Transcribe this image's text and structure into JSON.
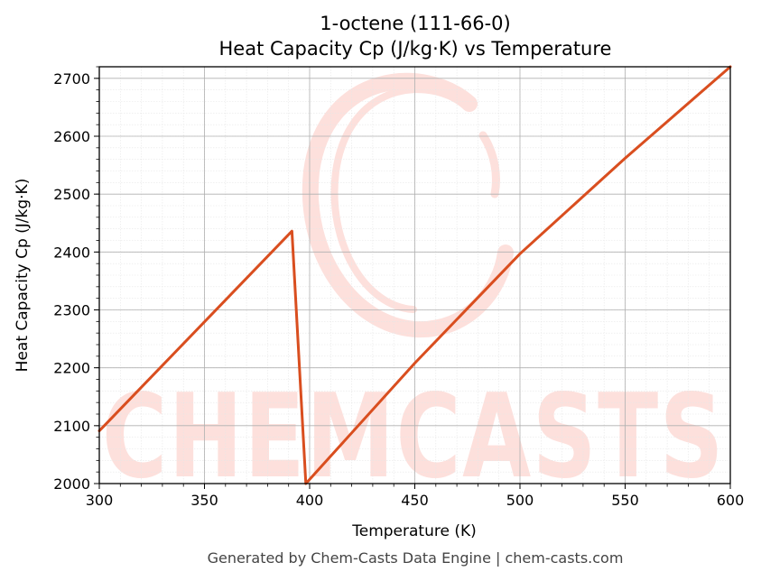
{
  "chart_data": {
    "type": "line",
    "title_line1": "1-octene (111-66-0)",
    "title_line2": "Heat Capacity Cp (J/kg·K) vs Temperature",
    "xlabel": "Temperature (K)",
    "ylabel": "Heat Capacity Cp (J/kg·K)",
    "xlim": [
      300,
      600
    ],
    "ylim": [
      2000,
      2720
    ],
    "xticks": [
      300,
      350,
      400,
      450,
      500,
      550,
      600
    ],
    "yticks": [
      2000,
      2100,
      2200,
      2300,
      2400,
      2500,
      2600,
      2700
    ],
    "grid": true,
    "series": [
      {
        "color": "#d94e1f",
        "x": [
          300,
          391.6,
          398.2,
          450,
          500,
          550,
          600
        ],
        "y": [
          2091,
          2436,
          2000,
          2208,
          2397,
          2562,
          2720
        ]
      }
    ]
  },
  "watermark": {
    "text": "CHEMCASTS",
    "color": "#fde0dc"
  },
  "footer": "Generated by Chem-Casts Data Engine | chem-casts.com"
}
